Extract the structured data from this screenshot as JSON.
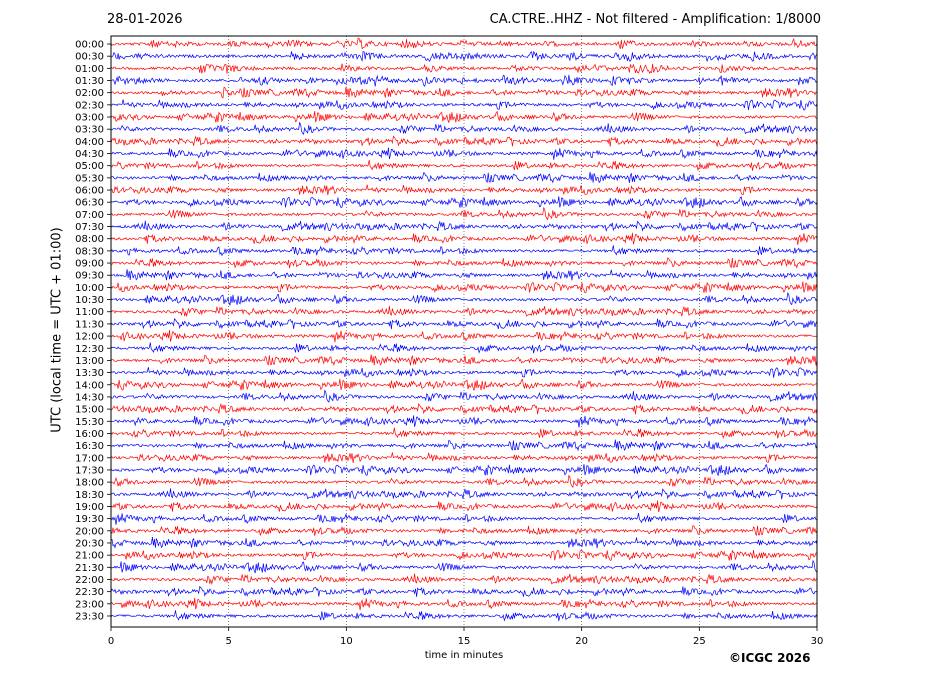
{
  "header": {
    "date": "28-01-2026",
    "title": "CA.CTRE..HHZ - Not filtered - Amplification: 1/8000"
  },
  "footer": {
    "copyright": "©ICGC 2026"
  },
  "chart_data": {
    "type": "line",
    "title": "CA.CTRE..HHZ - Not filtered - Amplification: 1/8000",
    "xlabel": "time in minutes",
    "ylabel": "UTC (local time = UTC + 01:00)",
    "xlim": [
      0,
      30
    ],
    "xticks": [
      0,
      5,
      10,
      15,
      20,
      25,
      30
    ],
    "xtick_labels": [
      "0",
      "5",
      "10",
      "15",
      "20",
      "25",
      "30"
    ],
    "grid": "vertical dotted",
    "trace_colors": [
      "#ff0000",
      "#0000ff"
    ],
    "row_labels": [
      "00:00",
      "00:30",
      "01:00",
      "01:30",
      "02:00",
      "02:30",
      "03:00",
      "03:30",
      "04:00",
      "04:30",
      "05:00",
      "05:30",
      "06:00",
      "06:30",
      "07:00",
      "07:30",
      "08:00",
      "08:30",
      "09:00",
      "09:30",
      "10:00",
      "10:30",
      "11:00",
      "11:30",
      "12:00",
      "12:30",
      "13:00",
      "13:30",
      "14:00",
      "14:30",
      "15:00",
      "15:30",
      "16:00",
      "16:30",
      "17:00",
      "17:30",
      "18:00",
      "18:30",
      "19:00",
      "19:30",
      "20:00",
      "20:30",
      "21:00",
      "21:30",
      "22:00",
      "22:30",
      "23:00",
      "23:30"
    ]
  }
}
